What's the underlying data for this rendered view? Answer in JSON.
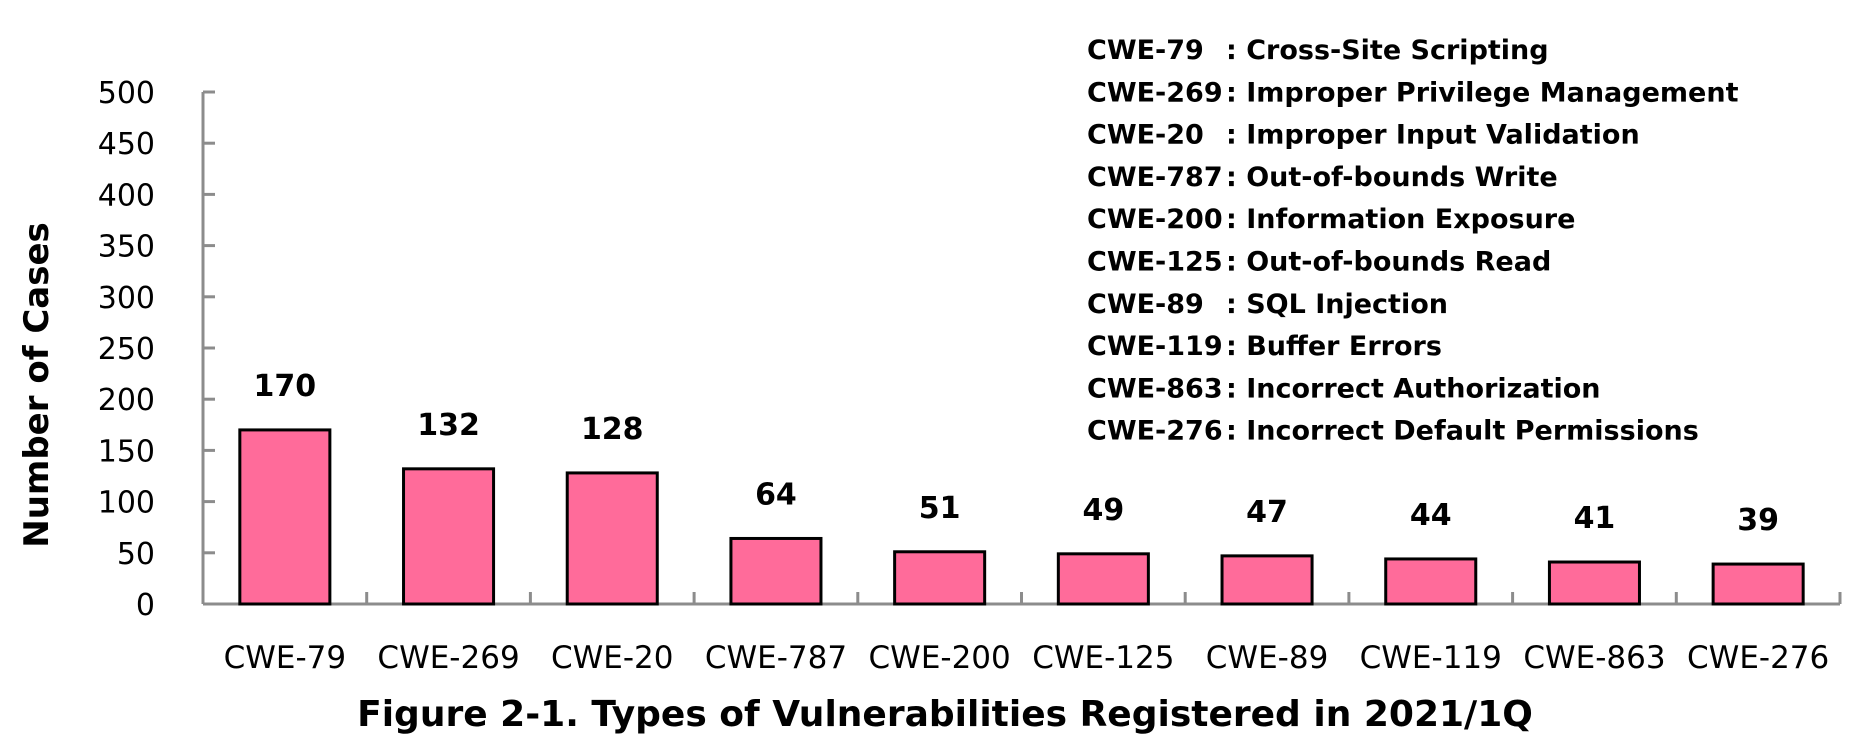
{
  "chart_data": {
    "type": "bar",
    "title": "Figure 2-1. Types of Vulnerabilities Registered in 2021/1Q",
    "xlabel": "",
    "ylabel": "Number of Cases",
    "ylim": [
      0,
      500
    ],
    "yticks": [
      0,
      50,
      100,
      150,
      200,
      250,
      300,
      350,
      400,
      450,
      500
    ],
    "categories": [
      "CWE-79",
      "CWE-269",
      "CWE-20",
      "CWE-787",
      "CWE-200",
      "CWE-125",
      "CWE-89",
      "CWE-119",
      "CWE-863",
      "CWE-276"
    ],
    "values": [
      170,
      132,
      128,
      64,
      51,
      49,
      47,
      44,
      41,
      39
    ],
    "bar_color": "#ff6b9a",
    "bar_outline": "#000000",
    "axis_color": "#8c8c8c",
    "grid": false,
    "legend_position": "top-right",
    "legend": [
      {
        "code": "CWE-79",
        "sep": ": ",
        "desc": "Cross-Site Scripting"
      },
      {
        "code": "CWE-269",
        "sep": ": ",
        "desc": "Improper Privilege Management"
      },
      {
        "code": "CWE-20",
        "sep": ": ",
        "desc": "Improper Input Validation"
      },
      {
        "code": "CWE-787",
        "sep": ": ",
        "desc": "Out-of-bounds Write"
      },
      {
        "code": "CWE-200",
        "sep": ": ",
        "desc": "Information Exposure"
      },
      {
        "code": "CWE-125",
        "sep": ": ",
        "desc": "Out-of-bounds Read"
      },
      {
        "code": "CWE-89",
        "sep": ": ",
        "desc": "SQL Injection"
      },
      {
        "code": "CWE-119",
        "sep": ": ",
        "desc": "Buffer Errors"
      },
      {
        "code": "CWE-863",
        "sep": ": ",
        "desc": "Incorrect Authorization"
      },
      {
        "code": "CWE-276",
        "sep": ": ",
        "desc": "Incorrect Default Permissions"
      }
    ]
  }
}
